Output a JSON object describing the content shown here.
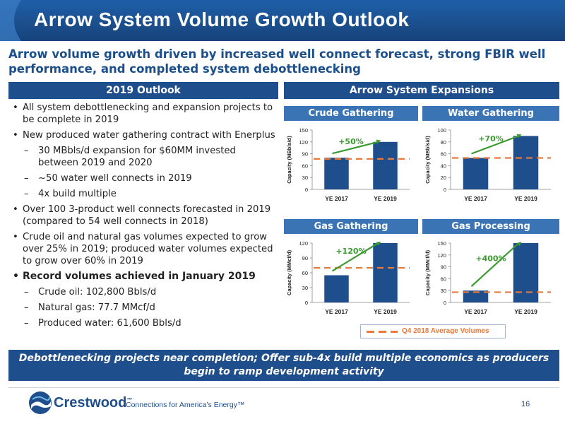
{
  "header": {
    "title": "Arrow System Volume Growth Outlook"
  },
  "subtitle": "Arrow volume growth driven by increased well connect forecast, strong FBIR well performance, and completed system debottlenecking",
  "left_band": "2019 Outlook",
  "right_band": "Arrow System Expansions",
  "bullets": [
    {
      "mark": "•",
      "text": "All system debottlenecking and expansion projects to be complete in 2019",
      "level": 1
    },
    {
      "mark": "•",
      "text": "New produced water gathering contract with Enerplus",
      "level": 1
    },
    {
      "mark": "–",
      "text": "30 MBbls/d expansion for $60MM invested between 2019 and 2020",
      "level": 2
    },
    {
      "mark": "–",
      "text": "~50 water well connects in 2019",
      "level": 2
    },
    {
      "mark": "–",
      "text": "4x build multiple",
      "level": 2
    },
    {
      "mark": "•",
      "text": "Over 100 3-product well connects forecasted in 2019 (compared to 54 well connects in 2018)",
      "level": 1
    },
    {
      "mark": "•",
      "text": "Crude oil and natural gas volumes expected to grow over 25% in 2019; produced water volumes expected to grow over 60% in 2019",
      "level": 1
    },
    {
      "mark": "•",
      "text": "Record volumes achieved in January 2019",
      "level": 1,
      "bold": true
    },
    {
      "mark": "–",
      "text": "Crude oil: 102,800 Bbls/d",
      "level": 2
    },
    {
      "mark": "–",
      "text": "Natural gas: 77.7 MMcf/d",
      "level": 2
    },
    {
      "mark": "–",
      "text": "Produced water: 61,600 Bbls/d",
      "level": 2
    }
  ],
  "chart_data": [
    {
      "type": "bar",
      "title": "Crude Gathering",
      "ylabel": "Capacity (MBbls/d)",
      "categories": [
        "YE 2017",
        "YE 2019"
      ],
      "values": [
        80,
        120
      ],
      "ylim": [
        0,
        150
      ],
      "yticks": [
        0,
        30,
        60,
        90,
        120,
        150
      ],
      "avg_line": 77,
      "growth_label": "+50%"
    },
    {
      "type": "bar",
      "title": "Water Gathering",
      "ylabel": "Capacity (MBbls/d)",
      "categories": [
        "YE 2017",
        "YE 2019"
      ],
      "values": [
        53,
        90
      ],
      "ylim": [
        0,
        100
      ],
      "yticks": [
        0,
        20,
        40,
        60,
        80,
        100
      ],
      "avg_line": 53,
      "growth_label": "+70%"
    },
    {
      "type": "bar",
      "title": "Gas Gathering",
      "ylabel": "Capacity (MMcf/d)",
      "categories": [
        "YE 2017",
        "YE 2019"
      ],
      "values": [
        55,
        120
      ],
      "ylim": [
        0,
        120
      ],
      "yticks": [
        0,
        30,
        60,
        90,
        120
      ],
      "avg_line": 70,
      "growth_label": "+120%"
    },
    {
      "type": "bar",
      "title": "Gas Processing",
      "ylabel": "Capacity (MMcf/d)",
      "categories": [
        "YE 2017",
        "YE 2019"
      ],
      "values": [
        30,
        150
      ],
      "ylim": [
        0,
        150
      ],
      "yticks": [
        0,
        30,
        60,
        90,
        120,
        150
      ],
      "avg_line": 26,
      "growth_label": "+400%"
    }
  ],
  "legend": {
    "label": "Q4 2018 Average Volumes"
  },
  "colors": {
    "bar": "#1f4e8c",
    "avg_line": "#e87a3a",
    "arrow": "#3a9a2e",
    "growth_text": "#3a9a2e"
  },
  "footer_band": "Debottlenecking projects near completion; Offer sub-4x build multiple economics as producers begin to ramp development activity",
  "logo": {
    "name": "Crestwood",
    "tm": "™"
  },
  "tagline": "Connections for America’s Energy™",
  "page_number": "16"
}
